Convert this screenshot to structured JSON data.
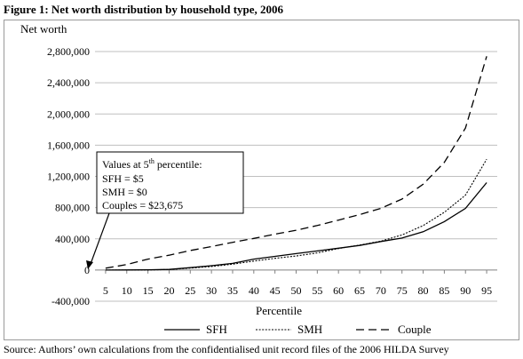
{
  "figure": {
    "title": "Figure 1: Net worth distribution by household type, 2006",
    "source": "Source: Authors’ own calculations from the confidentialised unit record files of the 2006 HILDA Survey"
  },
  "chart_data": {
    "type": "line",
    "ylabel": "Net worth",
    "xlabel": "Percentile",
    "ylim": [
      -400000,
      2800000
    ],
    "yticks": [
      -400000,
      0,
      400000,
      800000,
      1200000,
      1600000,
      2000000,
      2400000,
      2800000
    ],
    "ytick_labels": [
      "-400,000",
      "0",
      "400,000",
      "800,000",
      "1,200,000",
      "1,600,000",
      "2,000,000",
      "2,400,000",
      "2,800,000"
    ],
    "x": [
      5,
      10,
      15,
      20,
      25,
      30,
      35,
      40,
      45,
      50,
      55,
      60,
      65,
      70,
      75,
      80,
      85,
      90,
      95
    ],
    "grid": true,
    "legend_position": "bottom",
    "series": [
      {
        "name": "SFH",
        "style": "solid",
        "values": [
          5,
          500,
          3000,
          8000,
          30000,
          55000,
          85000,
          140000,
          175000,
          210000,
          245000,
          280000,
          315000,
          365000,
          410000,
          490000,
          620000,
          790000,
          1120000
        ]
      },
      {
        "name": "SMH",
        "style": "dotted",
        "values": [
          0,
          0,
          1000,
          6000,
          25000,
          45000,
          75000,
          115000,
          150000,
          180000,
          220000,
          275000,
          320000,
          370000,
          450000,
          570000,
          740000,
          960000,
          1420000
        ]
      },
      {
        "name": "Couple",
        "style": "dashed",
        "values": [
          23675,
          70000,
          140000,
          190000,
          250000,
          300000,
          355000,
          405000,
          460000,
          510000,
          570000,
          640000,
          710000,
          790000,
          910000,
          1100000,
          1380000,
          1820000,
          2740000
        ]
      }
    ],
    "annotation": {
      "line1_prefix": "Values at 5",
      "line1_sup": "th",
      "line1_suffix": " percentile:",
      "line2": "SFH = $5",
      "line3": "SMH = $0",
      "line4": "Couples = $23,675"
    }
  }
}
